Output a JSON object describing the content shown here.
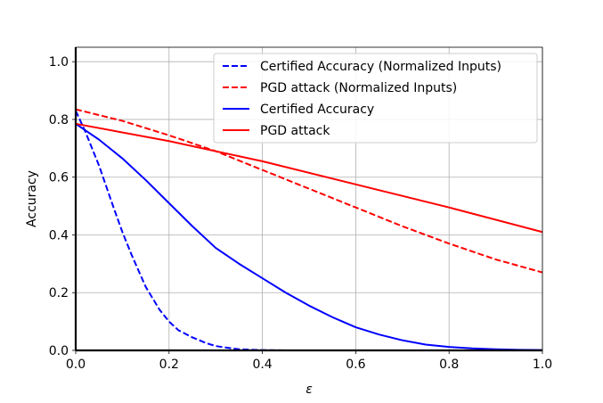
{
  "chart_data": {
    "type": "line",
    "xlabel": "ε",
    "ylabel": "Accuracy",
    "xlim": [
      0,
      1.0
    ],
    "ylim": [
      0,
      1.05
    ],
    "xticks": [
      "0.0",
      "0.2",
      "0.4",
      "0.6",
      "0.8",
      "1.0"
    ],
    "yticks": [
      "0.0",
      "0.2",
      "0.4",
      "0.6",
      "0.8",
      "1.0"
    ],
    "grid": true,
    "legend_position": "top-right",
    "series": [
      {
        "name": "Certified Accuracy (Normalized Inputs)",
        "color": "#0000ff",
        "dash": "dashed",
        "x": [
          0,
          0.02,
          0.05,
          0.08,
          0.1,
          0.12,
          0.15,
          0.18,
          0.2,
          0.22,
          0.25,
          0.28,
          0.3,
          0.33,
          0.35,
          0.38,
          0.4,
          0.45,
          0.5,
          0.6,
          0.7,
          0.8,
          0.9,
          1.0
        ],
        "y": [
          0.83,
          0.76,
          0.64,
          0.5,
          0.41,
          0.33,
          0.22,
          0.14,
          0.1,
          0.07,
          0.045,
          0.025,
          0.015,
          0.008,
          0.004,
          0.002,
          0.001,
          0.0,
          0.0,
          0.0,
          0.0,
          0.0,
          0.0,
          0.0
        ]
      },
      {
        "name": "PGD attack (Normalized Inputs)",
        "color": "#ff0000",
        "dash": "dashed",
        "x": [
          0,
          0.1,
          0.2,
          0.3,
          0.4,
          0.5,
          0.6,
          0.7,
          0.8,
          0.9,
          1.0
        ],
        "y": [
          0.835,
          0.795,
          0.745,
          0.69,
          0.625,
          0.56,
          0.495,
          0.43,
          0.37,
          0.315,
          0.27
        ]
      },
      {
        "name": "Certified Accuracy",
        "color": "#0000ff",
        "dash": "solid",
        "x": [
          0,
          0.05,
          0.1,
          0.15,
          0.2,
          0.25,
          0.3,
          0.35,
          0.4,
          0.45,
          0.5,
          0.55,
          0.6,
          0.65,
          0.7,
          0.75,
          0.8,
          0.85,
          0.9,
          0.95,
          1.0
        ],
        "y": [
          0.785,
          0.73,
          0.665,
          0.59,
          0.51,
          0.43,
          0.355,
          0.3,
          0.25,
          0.2,
          0.155,
          0.115,
          0.08,
          0.055,
          0.035,
          0.02,
          0.012,
          0.007,
          0.004,
          0.002,
          0.001
        ]
      },
      {
        "name": "PGD attack",
        "color": "#ff0000",
        "dash": "solid",
        "x": [
          0,
          0.2,
          0.4,
          0.6,
          0.8,
          1.0
        ],
        "y": [
          0.785,
          0.725,
          0.655,
          0.575,
          0.495,
          0.41
        ]
      }
    ]
  }
}
